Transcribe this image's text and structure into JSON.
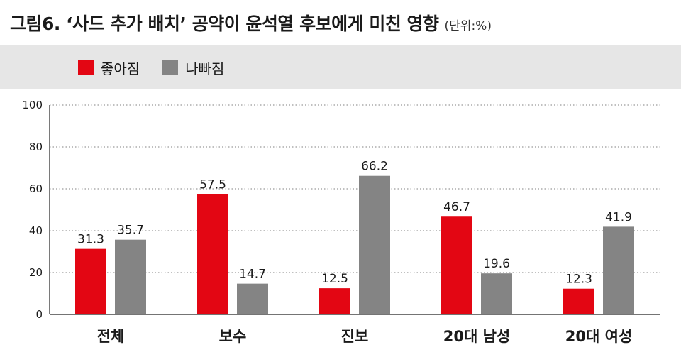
{
  "header": {
    "title": "그림6. ‘사드 추가 배치’ 공약이 윤석열 후보에게 미친 영향",
    "unit": "(단위:%)"
  },
  "colors": {
    "good": "#e30613",
    "bad": "#848484",
    "grid": "#9a9a9a"
  },
  "chart_data": {
    "type": "bar",
    "title": "그림6. ‘사드 추가 배치’ 공약이 윤석열 후보에게 미친 영향",
    "unit": "%",
    "categories": [
      "전체",
      "보수",
      "진보",
      "20대 남성",
      "20대 여성"
    ],
    "series": [
      {
        "name": "좋아짐",
        "values": [
          31.3,
          57.5,
          12.5,
          46.7,
          12.3
        ]
      },
      {
        "name": "나빠짐",
        "values": [
          35.7,
          14.7,
          66.2,
          19.6,
          41.9
        ]
      }
    ],
    "ylim": [
      0,
      100
    ],
    "yticks": [
      0,
      20,
      40,
      60,
      80,
      100
    ],
    "grid": true,
    "legend_position": "top-left"
  }
}
